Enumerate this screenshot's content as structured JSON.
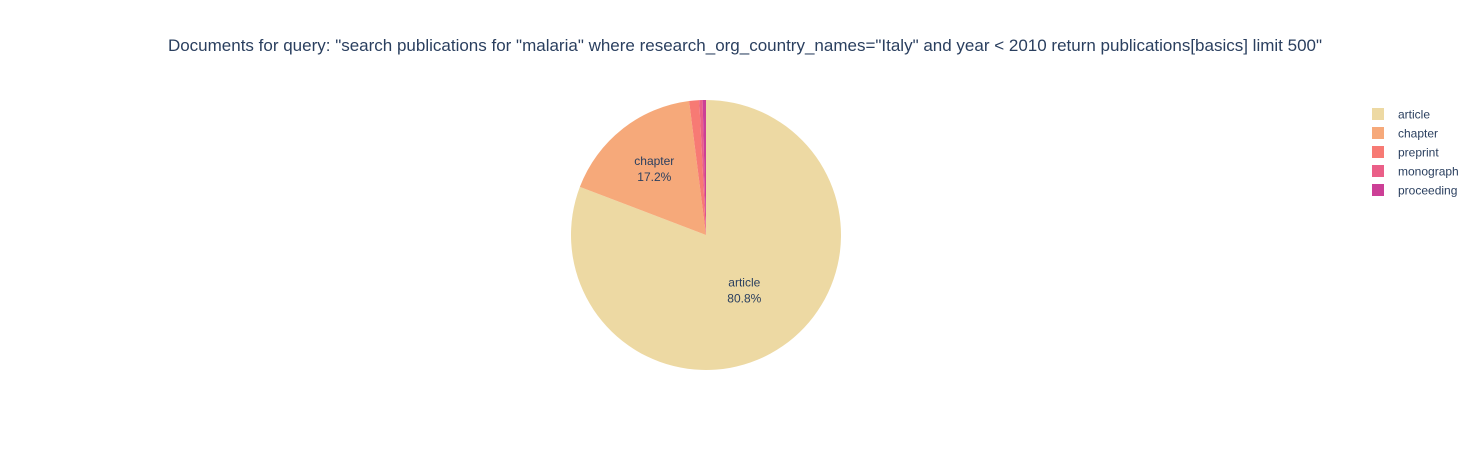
{
  "chart_data": {
    "type": "pie",
    "title": "Documents for query: \"search publications for \"malaria\" where research_org_country_names=\"Italy\" and year < 2010 return publications[basics] limit 500\"",
    "legend_position": "top-right",
    "slices": [
      {
        "label": "article",
        "value": 80.8,
        "percent_text": "80.8%",
        "color": "#edd9a3",
        "show_label": true
      },
      {
        "label": "chapter",
        "value": 17.2,
        "percent_text": "17.2%",
        "color": "#f6a97a",
        "show_label": true
      },
      {
        "label": "preprint",
        "value": 1.2,
        "percent_text": "1.2%",
        "color": "#f77a74",
        "show_label": false
      },
      {
        "label": "monograph",
        "value": 0.4,
        "percent_text": "0.4%",
        "color": "#ea5f88",
        "show_label": false
      },
      {
        "label": "proceeding",
        "value": 0.4,
        "percent_text": "0.4%",
        "color": "#cc3f96",
        "show_label": false
      }
    ]
  }
}
